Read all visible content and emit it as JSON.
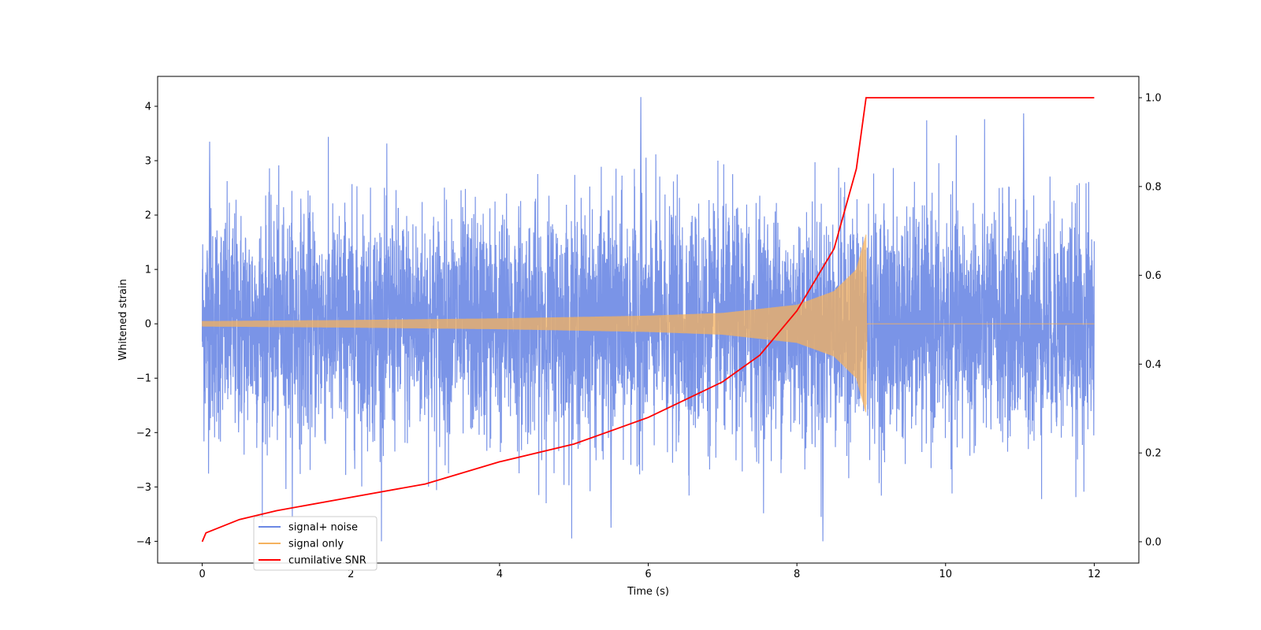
{
  "chart_data": {
    "type": "line",
    "xlabel": "Time (s)",
    "ylabel": "Whitened strain",
    "y2label": "",
    "xlim": [
      -0.6,
      12.6
    ],
    "ylim": [
      -4.4,
      4.55
    ],
    "y2lim": [
      -0.048,
      1.048
    ],
    "x_ticks": [
      0,
      2,
      4,
      6,
      8,
      10,
      12
    ],
    "y_ticks": [
      -4,
      -3,
      -2,
      -1,
      0,
      1,
      2,
      3,
      4
    ],
    "y2_ticks": [
      0.0,
      0.2,
      0.4,
      0.6,
      0.8,
      1.0
    ],
    "x_tick_labels": [
      "0",
      "2",
      "4",
      "6",
      "8",
      "10",
      "12"
    ],
    "y_tick_labels": [
      "−4",
      "−3",
      "−2",
      "−1",
      "0",
      "1",
      "2",
      "3",
      "4"
    ],
    "y2_tick_labels": [
      "0.0",
      "0.2",
      "0.4",
      "0.6",
      "0.8",
      "1.0"
    ],
    "grid": false,
    "legend_position": "lower-left",
    "legend": [
      "signal+ noise",
      "signal only",
      "cumilative SNR"
    ],
    "series": [
      {
        "name": "signal+ noise",
        "axis": "left",
        "color": "#6b88e4",
        "kind": "noise",
        "x_range": [
          0,
          12
        ],
        "band_approx": [
          -4.0,
          4.2
        ],
        "notable_peaks": [
          [
            0.1,
            3.35
          ],
          [
            5.9,
            4.17
          ],
          [
            11.05,
            3.87
          ],
          [
            8.35,
            -4.0
          ],
          [
            5.5,
            -3.75
          ]
        ]
      },
      {
        "name": "signal only",
        "axis": "left",
        "color": "#f5b25e",
        "kind": "chirp",
        "x_range": [
          0,
          12
        ],
        "merger_time": 8.93,
        "envelope": [
          [
            0,
            0.05
          ],
          [
            2,
            0.07
          ],
          [
            4,
            0.1
          ],
          [
            6,
            0.15
          ],
          [
            7,
            0.2
          ],
          [
            8,
            0.35
          ],
          [
            8.5,
            0.6
          ],
          [
            8.8,
            1.0
          ],
          [
            8.93,
            1.65
          ],
          [
            8.94,
            0.0
          ],
          [
            12,
            0.0
          ]
        ]
      },
      {
        "name": "cumilative SNR",
        "axis": "right",
        "color": "#ff0000",
        "kind": "line",
        "points": [
          [
            0,
            0.0
          ],
          [
            0.05,
            0.02
          ],
          [
            0.5,
            0.05
          ],
          [
            1,
            0.07
          ],
          [
            2,
            0.1
          ],
          [
            3,
            0.13
          ],
          [
            4,
            0.18
          ],
          [
            5,
            0.22
          ],
          [
            6,
            0.28
          ],
          [
            7,
            0.36
          ],
          [
            7.5,
            0.42
          ],
          [
            8,
            0.52
          ],
          [
            8.5,
            0.66
          ],
          [
            8.8,
            0.84
          ],
          [
            8.93,
            1.0
          ],
          [
            12,
            1.0
          ]
        ]
      }
    ]
  }
}
